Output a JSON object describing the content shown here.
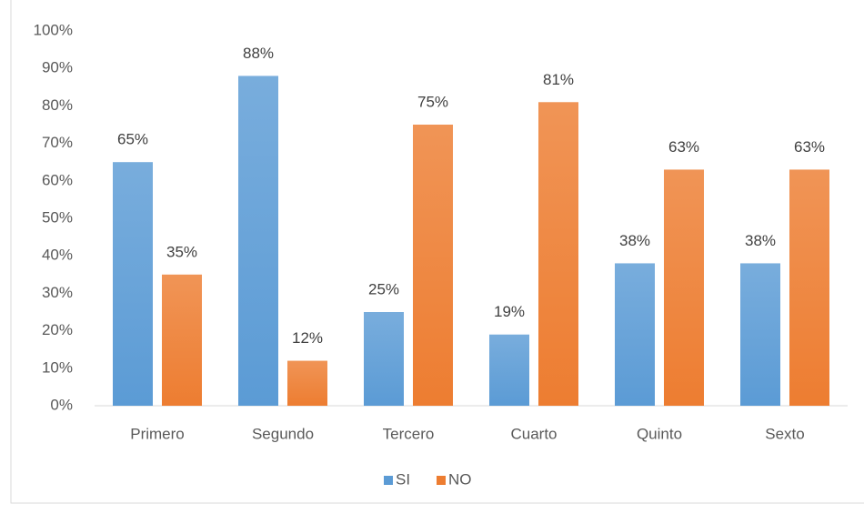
{
  "chart_data": {
    "type": "bar",
    "categories": [
      "Primero",
      "Segundo",
      "Tercero",
      "Cuarto",
      "Quinto",
      "Sexto"
    ],
    "series": [
      {
        "name": "SI",
        "color": "#5b9bd5",
        "values": [
          65,
          88,
          25,
          19,
          38,
          38
        ],
        "value_labels": [
          "65%",
          "88%",
          "25%",
          "19%",
          "38%",
          "38%"
        ]
      },
      {
        "name": "NO",
        "color": "#ed7d31",
        "values": [
          35,
          12,
          75,
          81,
          63,
          63
        ],
        "value_labels": [
          "35%",
          "12%",
          "75%",
          "81%",
          "63%",
          "63%"
        ]
      }
    ],
    "ylim": [
      0,
      100
    ],
    "yticks": [
      {
        "value": 0,
        "label": "0%"
      },
      {
        "value": 10,
        "label": "10%"
      },
      {
        "value": 20,
        "label": "20%"
      },
      {
        "value": 30,
        "label": "30%"
      },
      {
        "value": 40,
        "label": "40%"
      },
      {
        "value": 50,
        "label": "50%"
      },
      {
        "value": 60,
        "label": "60%"
      },
      {
        "value": 70,
        "label": "70%"
      },
      {
        "value": 80,
        "label": "80%"
      },
      {
        "value": 90,
        "label": "90%"
      },
      {
        "value": 100,
        "label": "100%"
      }
    ],
    "grid": false,
    "legend": "bottom"
  }
}
